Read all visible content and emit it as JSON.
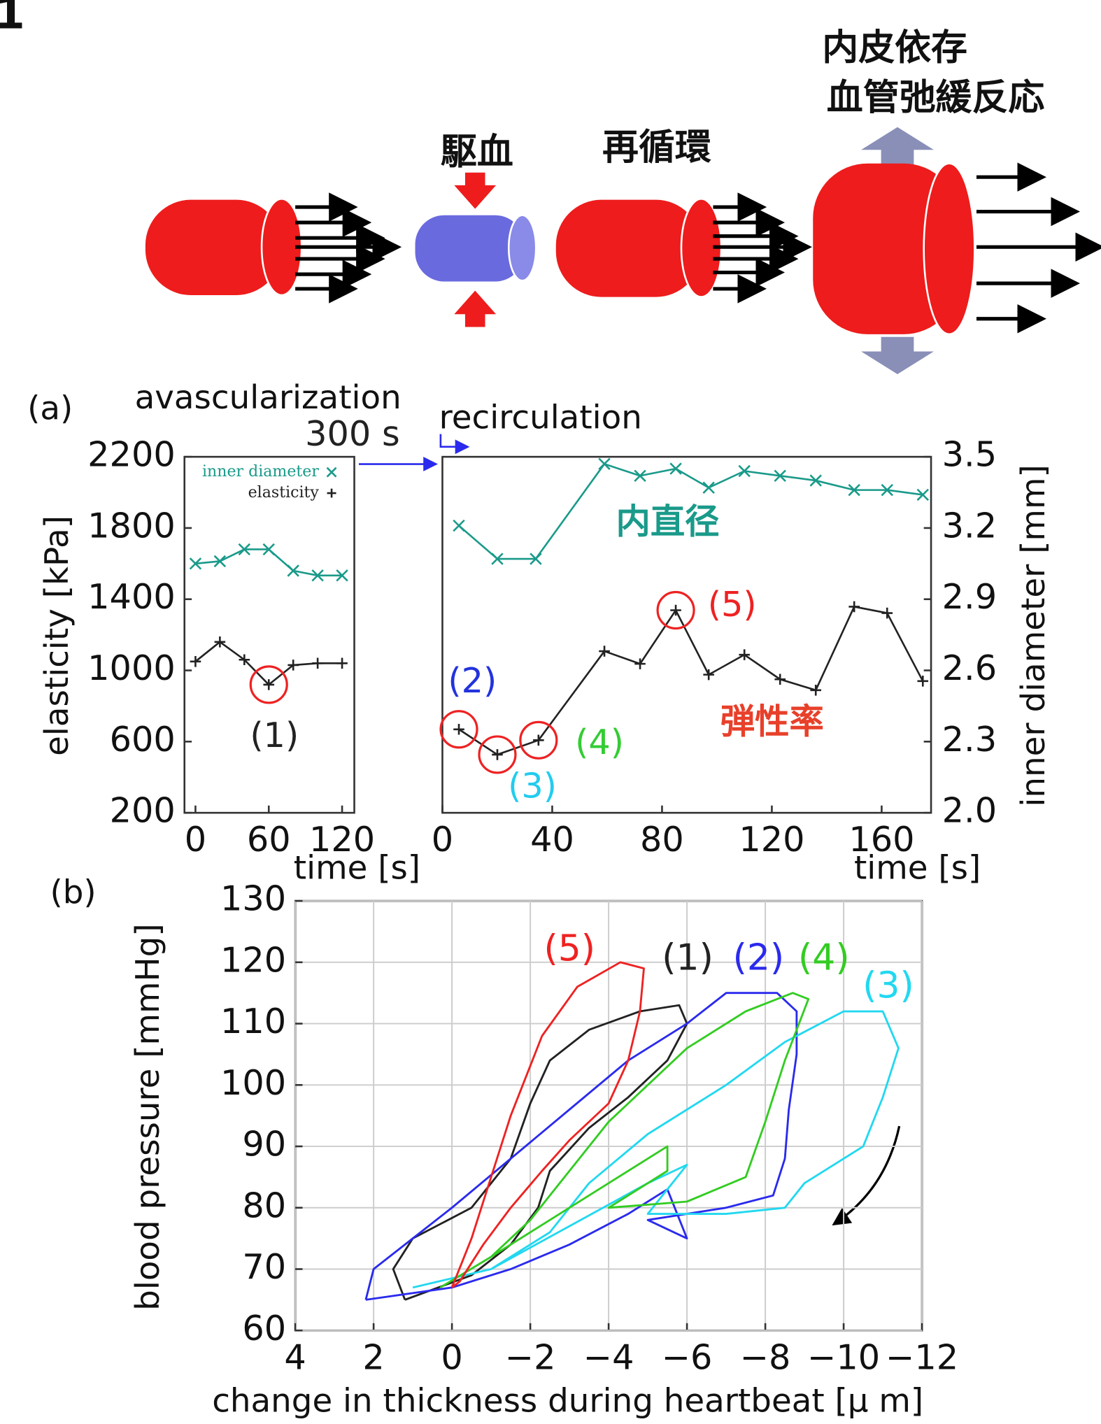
{
  "figure_label": "1",
  "diagram": {
    "labels": [
      "駆血",
      "再循環",
      "内皮依存",
      "血管弛緩反応"
    ]
  },
  "chart_data": [
    {
      "type": "line",
      "panel_label": "(a)",
      "title": "avascularization",
      "xlabel": "time [s]",
      "ylabel": "elasticity [kPa]",
      "xlim": [
        -9,
        130
      ],
      "xticks": [
        0,
        60,
        120
      ],
      "ylim": [
        200,
        2200
      ],
      "yticks": [
        200,
        600,
        1000,
        1400,
        1800,
        2200
      ],
      "y2lim": [
        2,
        3.5
      ],
      "series": [
        {
          "name": "inner diameter",
          "color": "#1a9a8a",
          "axis": "y2",
          "x": [
            0,
            20,
            40,
            60,
            80,
            100,
            120
          ],
          "values": [
            3.05,
            3.06,
            3.11,
            3.11,
            3.02,
            3.0,
            3.0
          ]
        },
        {
          "name": "elasticity",
          "color": "#222222",
          "x": [
            0,
            20,
            40,
            60,
            80,
            100,
            120
          ],
          "values": [
            1050,
            1160,
            1060,
            920,
            1030,
            1040,
            1040
          ]
        }
      ],
      "annotations": [
        "(1)"
      ]
    },
    {
      "type": "line",
      "title": "recirculation",
      "xlabel": "time [s]",
      "y2label": "inner diameter [mm]",
      "xlim": [
        0,
        178
      ],
      "xticks": [
        0,
        40,
        80,
        120,
        160
      ],
      "ylim": [
        200,
        2200
      ],
      "y2lim": [
        2,
        3.5
      ],
      "y2ticks": [
        {
          "value": 2,
          "label": "2.0"
        },
        2.3,
        2.6,
        2.9,
        3.2,
        3.5
      ],
      "series": [
        {
          "name": "inner diameter",
          "color": "#1a9a8a",
          "axis": "y2",
          "x": [
            6,
            20,
            34,
            59,
            72,
            85,
            97,
            110,
            123,
            136,
            150,
            162,
            175
          ],
          "values": [
            3.21,
            3.07,
            3.07,
            3.47,
            3.42,
            3.45,
            3.37,
            3.44,
            3.42,
            3.4,
            3.36,
            3.36,
            3.34
          ]
        },
        {
          "name": "elasticity",
          "color": "#222222",
          "x": [
            6,
            20,
            35,
            59,
            72,
            85,
            97,
            110,
            123,
            136,
            150,
            162,
            175
          ],
          "values": [
            669,
            527,
            608,
            1108,
            1037,
            1338,
            976,
            1088,
            950,
            889,
            1358,
            1322,
            940
          ]
        }
      ],
      "annotations": [
        "300 s",
        "内直径",
        "弾性率",
        "(2)",
        "(3)",
        "(4)",
        "(5)"
      ]
    },
    {
      "type": "line",
      "panel_label": "(b)",
      "xlabel": "change in thickness during heartbeat [μ m]",
      "ylabel": "blood pressure [mmHg]",
      "xlim": [
        4,
        -12
      ],
      "xticks": [
        4,
        2,
        0,
        {
          "value": -2,
          "label": "−2"
        },
        {
          "value": -4,
          "label": "−4"
        },
        {
          "value": -6,
          "label": "−6"
        },
        {
          "value": -8,
          "label": "−8"
        },
        {
          "value": -10,
          "label": "−10"
        },
        {
          "value": -12,
          "label": "−12"
        }
      ],
      "ylim": [
        60,
        130
      ],
      "yticks": [
        60,
        70,
        80,
        90,
        100,
        110,
        120,
        130
      ],
      "grid": true,
      "series": [
        {
          "name": "(1)",
          "color": "#222222",
          "x": [
            1.2,
            1.5,
            1,
            -0.5,
            -1.5,
            -2,
            -2.5,
            -3.5,
            -4.8,
            -5.8,
            -6,
            -5.5,
            -4.5,
            -3.5,
            -2.5,
            -2.2,
            -1.5,
            -0.5,
            1.2
          ],
          "values": [
            65,
            70,
            75,
            80,
            88,
            97,
            104,
            109,
            112,
            113,
            110,
            104,
            98,
            93,
            86,
            80,
            74,
            69,
            65
          ]
        },
        {
          "name": "(2)",
          "color": "#2a2aee",
          "x": [
            2.2,
            2,
            1,
            0,
            -1.5,
            -3,
            -4.5,
            -6,
            -7,
            -8.3,
            -8.8,
            -8.8,
            -8.6,
            -8.5,
            -8.2,
            -7,
            -5,
            -6,
            -5.5,
            -4.5,
            -3,
            -1.5,
            0,
            2.2
          ],
          "values": [
            65,
            70,
            75,
            80,
            88,
            96,
            104,
            110,
            115,
            115,
            112,
            105,
            96,
            88,
            82,
            80,
            78,
            75,
            83,
            79,
            74,
            70,
            67,
            65
          ]
        },
        {
          "name": "(3)",
          "color": "#22d8f0",
          "x": [
            1,
            -1,
            -2.5,
            -3.5,
            -5,
            -7,
            -8.5,
            -10,
            -11,
            -11.4,
            -11,
            -10.5,
            -9,
            -8.5,
            -7,
            -5,
            -6,
            -5,
            -3,
            -1,
            1
          ],
          "values": [
            67,
            70,
            76,
            84,
            92,
            100,
            107,
            112,
            112,
            106,
            98,
            90,
            84,
            80,
            79,
            79,
            87,
            84,
            77,
            70,
            67
          ]
        },
        {
          "name": "(4)",
          "color": "#33cc22",
          "x": [
            0.3,
            -1,
            -2,
            -3,
            -4,
            -5,
            -6,
            -7.5,
            -8.7,
            -9.1,
            -8.5,
            -8,
            -7.5,
            -6,
            -4,
            -5.5,
            -5.5,
            -4,
            -2.5,
            -1,
            0.3
          ],
          "values": [
            67,
            72,
            78,
            86,
            94,
            100,
            106,
            112,
            115,
            114,
            104,
            94,
            85,
            81,
            80,
            86,
            90,
            84,
            78,
            72,
            67
          ]
        },
        {
          "name": "(5)",
          "color": "#ee2222",
          "x": [
            0,
            -0.5,
            -1,
            -1.5,
            -2.3,
            -3.2,
            -4.3,
            -4.9,
            -4.8,
            -4.5,
            -4,
            -3,
            -2.3,
            -1.5,
            -0.8,
            -0.2,
            0
          ],
          "values": [
            67,
            75,
            85,
            95,
            108,
            116,
            120,
            119,
            112,
            104,
            97,
            91,
            86,
            80,
            74,
            68,
            67
          ]
        }
      ]
    }
  ]
}
